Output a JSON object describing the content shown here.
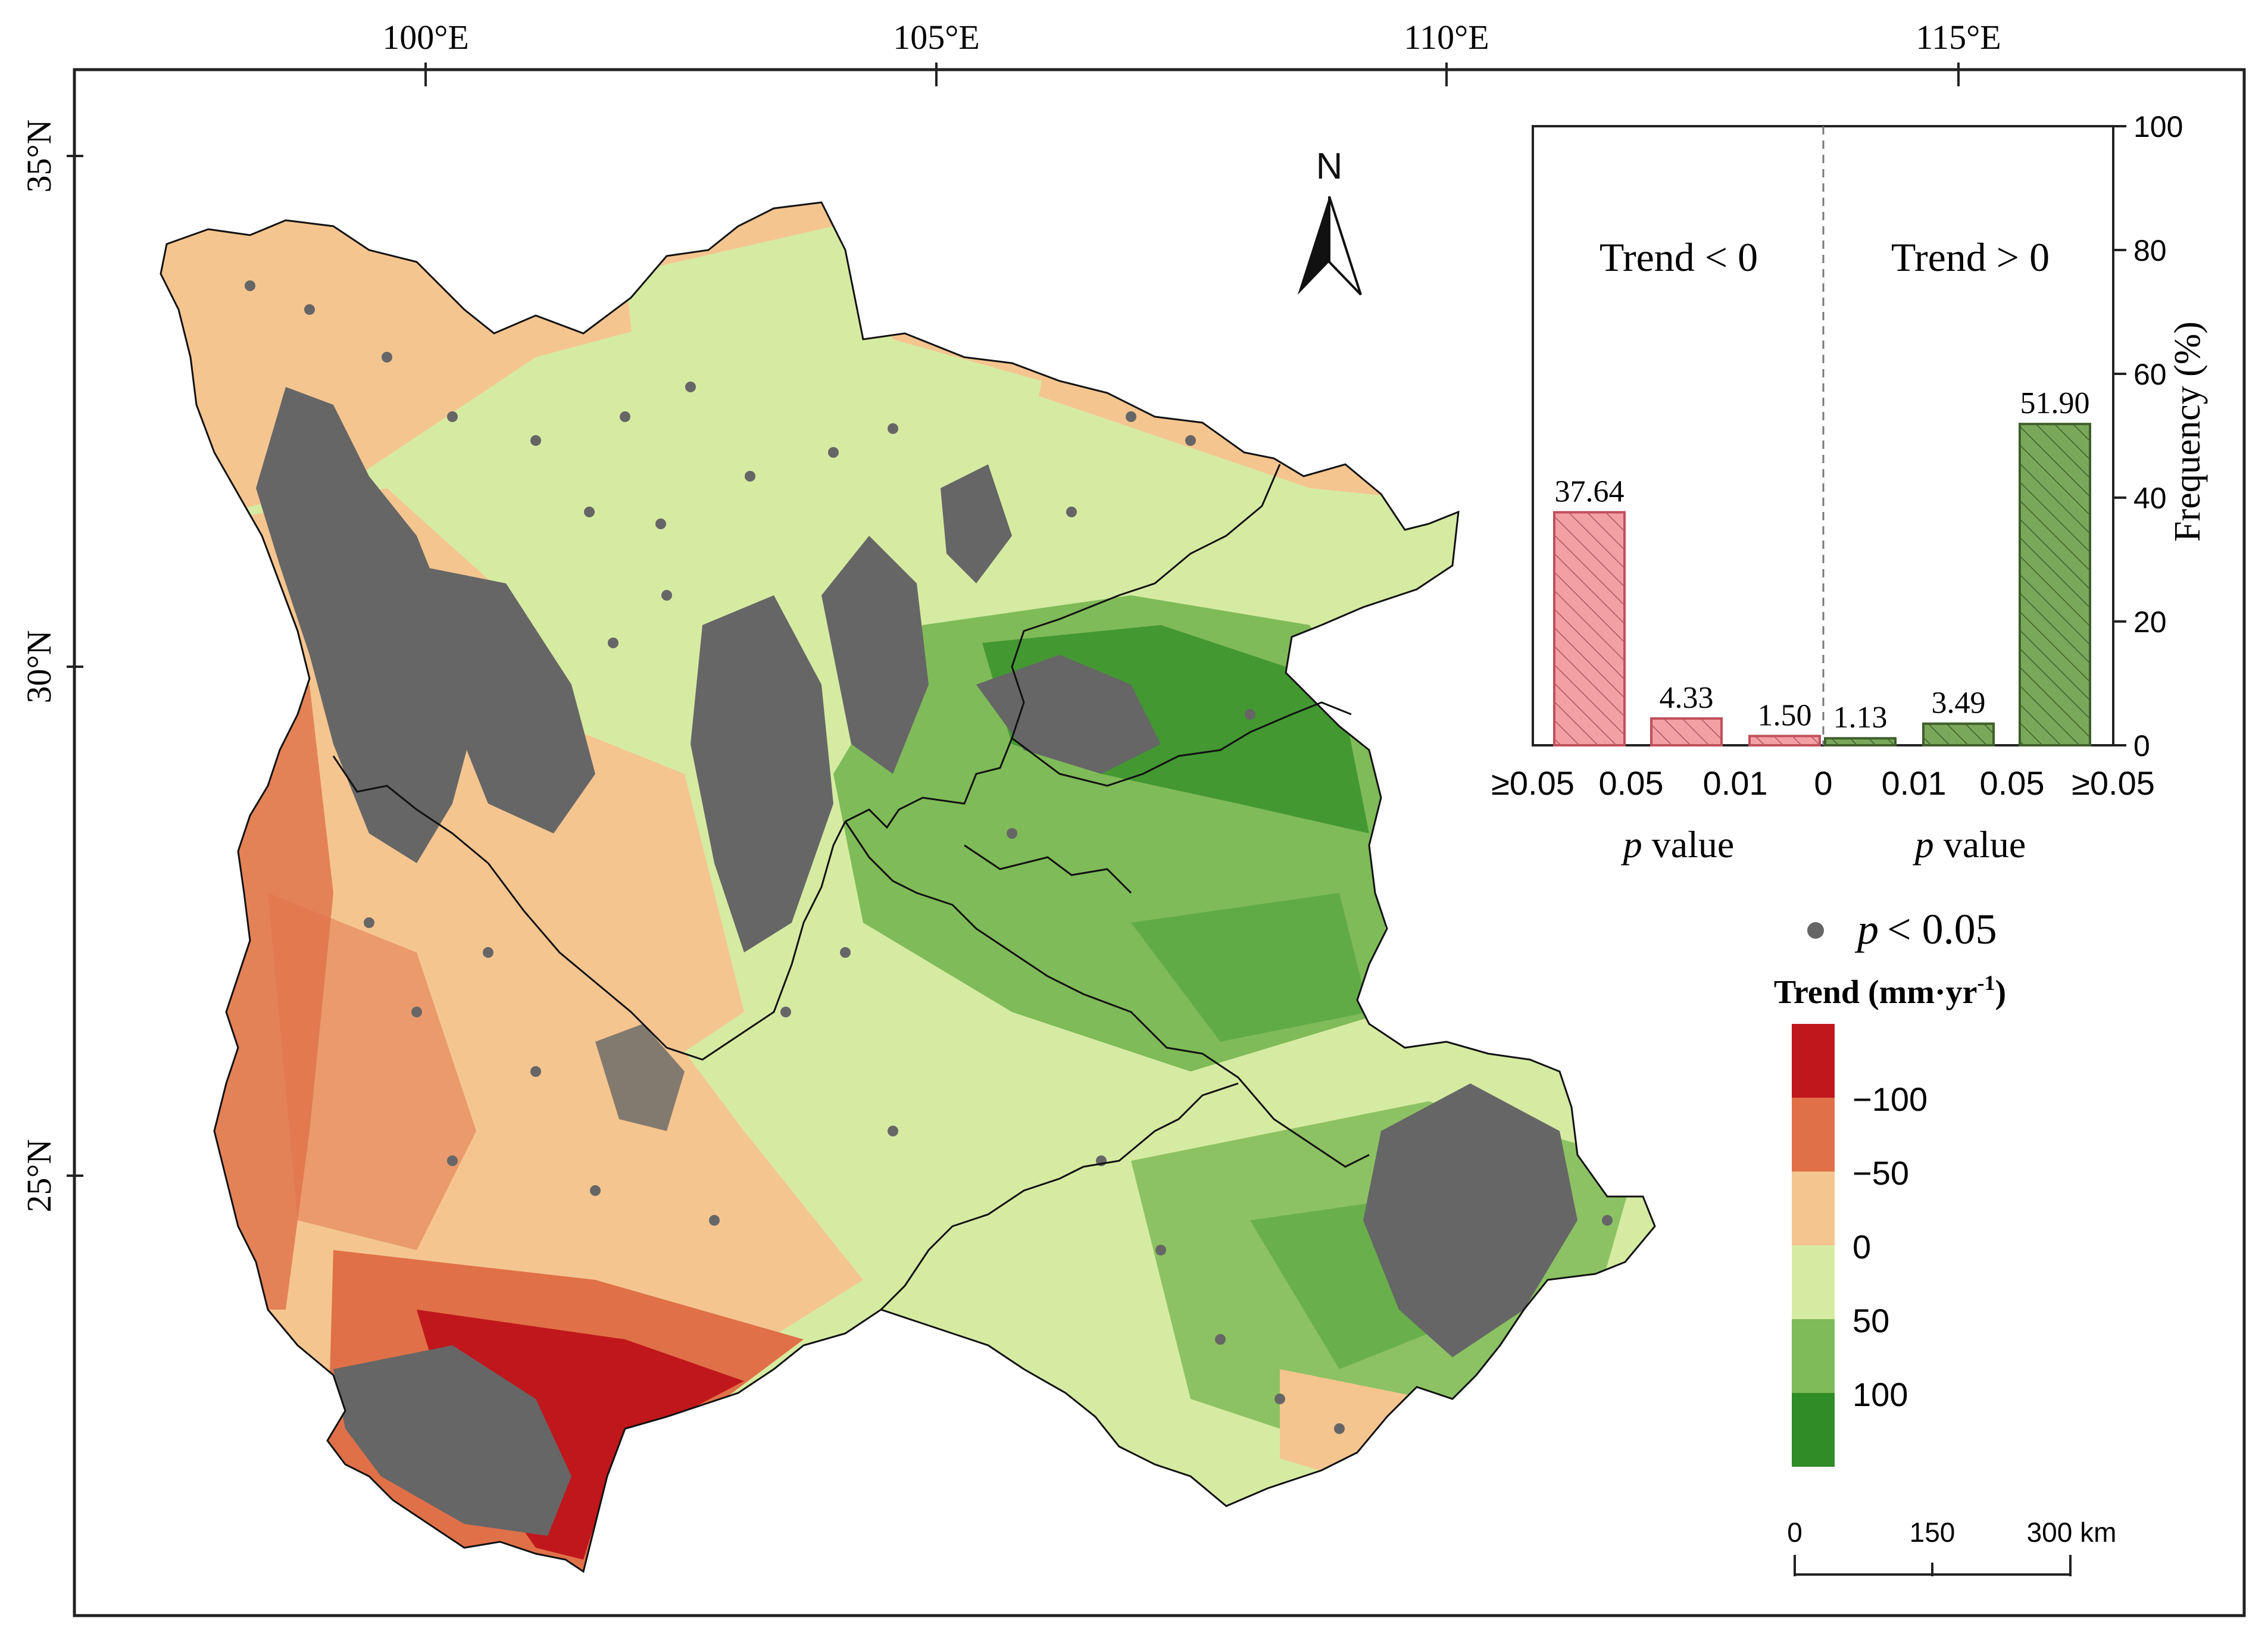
{
  "map": {
    "lon_ticks": [
      "100°E",
      "105°E",
      "110°E",
      "115°E"
    ],
    "lat_ticks": [
      "35°N",
      "30°N",
      "25°N"
    ],
    "north_label": "N"
  },
  "inset": {
    "trend_neg_label": "Trend < 0",
    "trend_pos_label": "Trend > 0",
    "y_axis_label": "Frequency (%)",
    "y_ticks": [
      "0",
      "20",
      "40",
      "60",
      "80",
      "100"
    ],
    "x_ticks": [
      "≥0.05",
      "0.05",
      "0.01",
      "0",
      "0.01",
      "0.05",
      "≥0.05"
    ],
    "p_value_italic": "p",
    "p_value_label": "value",
    "colors": {
      "negative": "#f2a0a4",
      "positive": "#6e9a4e",
      "hatch": "#555555"
    },
    "chart_data": {
      "type": "bar",
      "ylim": [
        0,
        100
      ],
      "series": [
        {
          "name": "Trend < 0",
          "values": [
            37.64,
            4.33,
            1.5
          ]
        },
        {
          "name": "Trend > 0",
          "values": [
            1.13,
            3.49,
            51.9
          ]
        }
      ],
      "value_labels": [
        "37.64",
        "4.33",
        "1.50",
        "1.13",
        "3.49",
        "51.90"
      ],
      "values": [
        37.64,
        4.33,
        1.5,
        1.13,
        3.49,
        51.9
      ]
    }
  },
  "legend": {
    "dot_italic": "p",
    "dot_label": "< 0.05",
    "dot_color": "#666666",
    "title": "Trend (mm·yr",
    "title_sup": "-1",
    "title_end": ")",
    "classes": [
      {
        "color": "#c0171c"
      },
      {
        "color": "#e07048"
      },
      {
        "color": "#f5c590"
      },
      {
        "color": "#d6eba2"
      },
      {
        "color": "#7fbb58"
      },
      {
        "color": "#2f8c26"
      }
    ],
    "class_labels": [
      "−100",
      "−50",
      "0",
      "50",
      "100"
    ]
  },
  "scale_bar": {
    "labels": [
      "0",
      "150",
      "300 km"
    ]
  }
}
